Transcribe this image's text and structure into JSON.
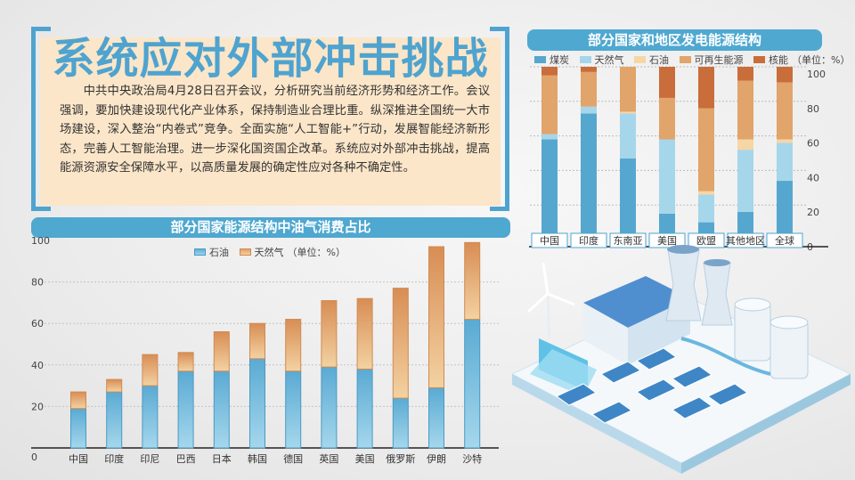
{
  "article": {
    "title": "系统应对外部冲击挑战",
    "body": "中共中央政治局4月28日召开会议，分析研究当前经济形势和经济工作。会议强调，要加快建设现代化产业体系，保持制造业合理比重。纵深推进全国统一大市场建设，深入整治“内卷式”竞争。全面实施“人工智能+”行动，发展智能经济新形态，完善人工智能治理。进一步深化国资国企改革。系统应对外部冲击挑战，提高能源资源安全保障水平，以高质量发展的确定性应对各种不确定性。"
  },
  "colors": {
    "accent": "#4fa3cf",
    "coal": "#55a7cf",
    "gas": "#a6d6ea",
    "oil": "#f6d6a4",
    "renewable": "#e1a46a",
    "nuclear": "#c96d3a"
  },
  "chart_data": [
    {
      "type": "bar",
      "stacked": true,
      "title": "部分国家和地区发电能源结构",
      "unit_note": "（单位：%）",
      "categories": [
        "中国",
        "印度",
        "东南亚",
        "美国",
        "欧盟",
        "其他地区",
        "全球"
      ],
      "series": [
        {
          "name": "煤炭",
          "values": [
            58,
            73,
            47,
            15,
            10,
            16,
            34
          ]
        },
        {
          "name": "天然气",
          "values": [
            3,
            4,
            26,
            43,
            16,
            36,
            22
          ]
        },
        {
          "name": "石油",
          "values": [
            0,
            0,
            1,
            0,
            2,
            6,
            2
          ]
        },
        {
          "name": "可再生能源",
          "values": [
            34,
            20,
            26,
            24,
            48,
            34,
            33
          ]
        },
        {
          "name": "核能",
          "values": [
            5,
            3,
            0,
            18,
            24,
            8,
            9
          ]
        }
      ],
      "ylim": [
        0,
        100
      ],
      "yticks": [
        "0",
        "20",
        "40",
        "60",
        "80",
        "100"
      ],
      "legend": "top"
    },
    {
      "type": "bar",
      "stacked": true,
      "title": "部分国家能源结构中油气消费占比",
      "unit_note": "（单位：%）",
      "categories": [
        "中国",
        "印度",
        "印尼",
        "巴西",
        "日本",
        "韩国",
        "德国",
        "英国",
        "美国",
        "俄罗斯",
        "伊朗",
        "沙特"
      ],
      "series": [
        {
          "name": "石油",
          "values": [
            19,
            27,
            30,
            37,
            37,
            43,
            37,
            39,
            38,
            24,
            29,
            62
          ]
        },
        {
          "name": "天然气",
          "values": [
            8,
            6,
            15,
            9,
            19,
            17,
            25,
            32,
            34,
            53,
            68,
            37
          ]
        }
      ],
      "ylim": [
        0,
        100
      ],
      "yticks": [
        "0",
        "20",
        "40",
        "60",
        "80",
        "100"
      ],
      "legend": "top"
    }
  ]
}
